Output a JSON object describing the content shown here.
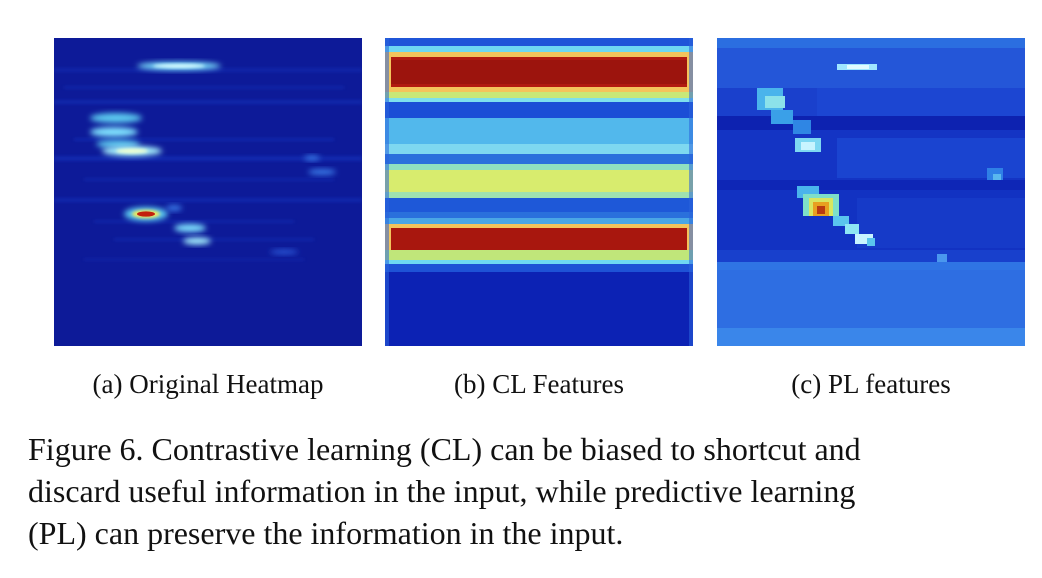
{
  "figure": {
    "panels": [
      {
        "id": "a",
        "subcaption": "(a) Original Heatmap",
        "visual": "sparse heatmap: dark blue background with a few bright cyan/yellow horizontal streaks and one red hot spot"
      },
      {
        "id": "b",
        "subcaption": "(b) CL Features",
        "visual": "horizontal bands: two red bands, one yellow-green band, cyan/blue bands, dark blue lower region"
      },
      {
        "id": "c",
        "subcaption": "(c) PL features",
        "visual": "blocky blue feature map with a diagonal cyan/yellow streak and an orange hot spot, lighter blue lower region"
      }
    ],
    "caption_lines": [
      "Figure 6. Contrastive learning (CL) can be biased to shortcut and",
      "discard useful information in the input, while predictive learning",
      "(PL) can preserve the information in the input."
    ]
  },
  "colors": {
    "dark_blue": "#0a1a9c",
    "blue": "#1f4fd8",
    "cyan": "#5fd6f0",
    "yellow": "#e8e86a",
    "red": "#a8140f",
    "orange": "#e8a020"
  }
}
